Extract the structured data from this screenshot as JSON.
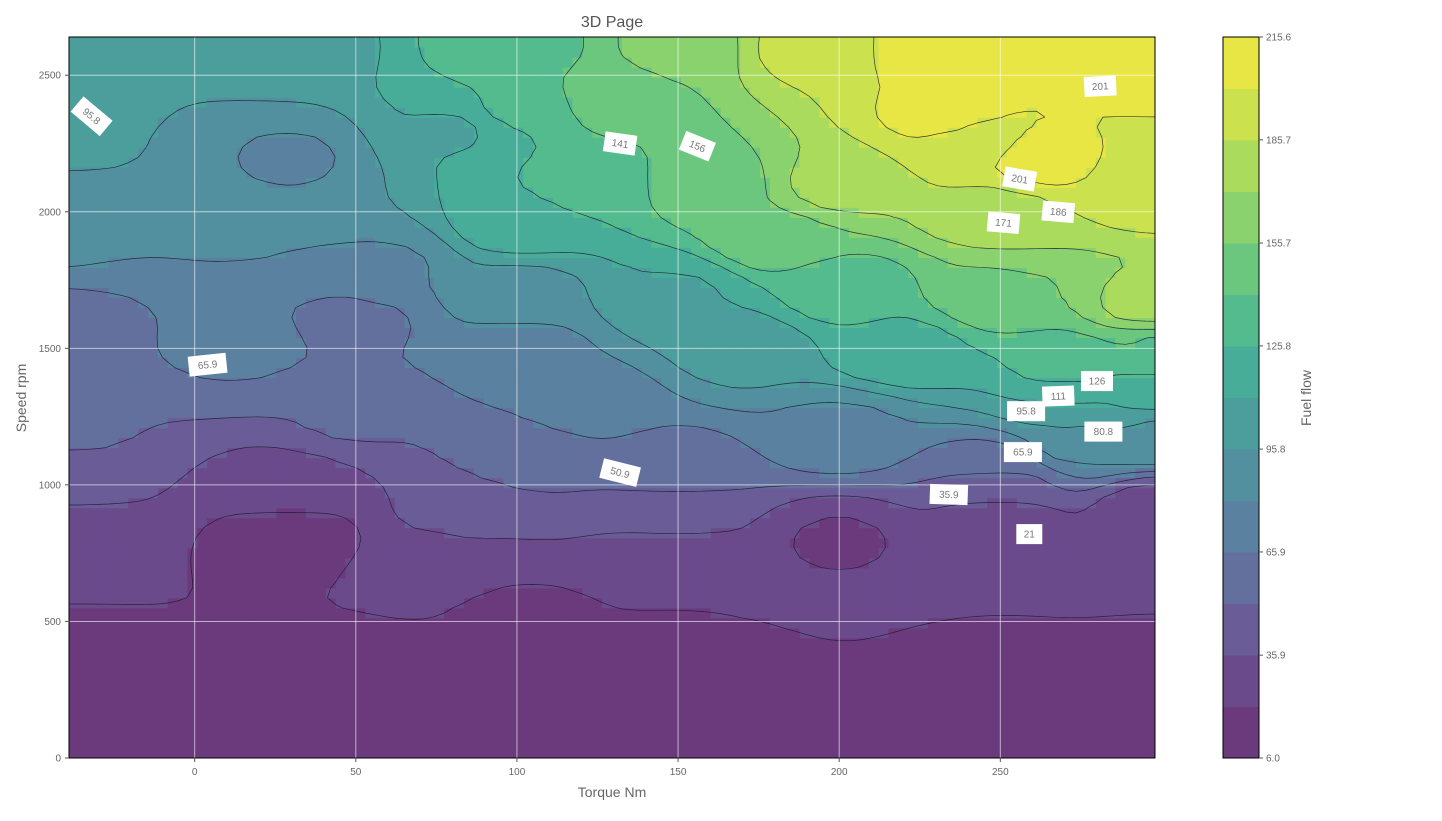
{
  "chart_data": {
    "type": "contour",
    "title": "3D Page",
    "xlabel": "Torque Nm",
    "ylabel": "Speed rpm",
    "xlim": [
      -39,
      298
    ],
    "ylim": [
      0,
      2640
    ],
    "x_ticks": [
      0,
      50,
      100,
      150,
      200,
      250
    ],
    "y_ticks": [
      0,
      500,
      1000,
      1500,
      2000,
      2500
    ],
    "grid": true,
    "colormap": "viridis",
    "colorbar": {
      "label": "Fuel flow",
      "min": 6.0,
      "max": 215.6,
      "levels": [
        6.0,
        21.0,
        35.9,
        50.9,
        65.9,
        80.8,
        95.8,
        110.8,
        125.8,
        140.7,
        155.7,
        170.7,
        185.7,
        200.6,
        215.6
      ],
      "tick_labels": [
        "6.0",
        "35.9",
        "65.9",
        "95.8",
        "125.8",
        "155.7",
        "185.7",
        "215.6"
      ]
    },
    "contour_labels": [
      {
        "text": "95.8",
        "x": -32,
        "y": 2350,
        "rotation": 40
      },
      {
        "text": "141",
        "x": 132,
        "y": 2250,
        "rotation": 8
      },
      {
        "text": "156",
        "x": 156,
        "y": 2240,
        "rotation": 22
      },
      {
        "text": "201",
        "x": 281,
        "y": 2460,
        "rotation": -3
      },
      {
        "text": "201",
        "x": 256,
        "y": 2120,
        "rotation": 10
      },
      {
        "text": "186",
        "x": 268,
        "y": 2000,
        "rotation": 5
      },
      {
        "text": "171",
        "x": 251,
        "y": 1960,
        "rotation": 5
      },
      {
        "text": "65.9",
        "x": 4,
        "y": 1440,
        "rotation": -6
      },
      {
        "text": "126",
        "x": 280,
        "y": 1380,
        "rotation": 0
      },
      {
        "text": "111",
        "x": 268,
        "y": 1325,
        "rotation": -2
      },
      {
        "text": "95.8",
        "x": 258,
        "y": 1270,
        "rotation": 0
      },
      {
        "text": "80.8",
        "x": 282,
        "y": 1195,
        "rotation": 0
      },
      {
        "text": "65.9",
        "x": 257,
        "y": 1120,
        "rotation": 0
      },
      {
        "text": "50.9",
        "x": 132,
        "y": 1045,
        "rotation": 14
      },
      {
        "text": "35.9",
        "x": 234,
        "y": 965,
        "rotation": 2
      },
      {
        "text": "21",
        "x": 259,
        "y": 820,
        "rotation": 0
      }
    ],
    "surface_landmarks": [
      {
        "x": -40,
        "y": 0,
        "value": 8
      },
      {
        "x": 0,
        "y": 0,
        "value": 8
      },
      {
        "x": 50,
        "y": 0,
        "value": 8
      },
      {
        "x": 100,
        "y": 0,
        "value": 8
      },
      {
        "x": 150,
        "y": 0,
        "value": 8
      },
      {
        "x": 200,
        "y": 0,
        "value": 8
      },
      {
        "x": 250,
        "y": 0,
        "value": 8
      },
      {
        "x": 298,
        "y": 0,
        "value": 8
      },
      {
        "x": -40,
        "y": 300,
        "value": 10
      },
      {
        "x": 50,
        "y": 300,
        "value": 10
      },
      {
        "x": 150,
        "y": 300,
        "value": 12
      },
      {
        "x": 250,
        "y": 300,
        "value": 14
      },
      {
        "x": 298,
        "y": 300,
        "value": 14
      },
      {
        "x": 30,
        "y": 800,
        "value": 12
      },
      {
        "x": 70,
        "y": 700,
        "value": 27
      },
      {
        "x": -40,
        "y": 830,
        "value": 28
      },
      {
        "x": 100,
        "y": 500,
        "value": 18
      },
      {
        "x": 150,
        "y": 700,
        "value": 21
      },
      {
        "x": 200,
        "y": 800,
        "value": 20
      },
      {
        "x": 250,
        "y": 850,
        "value": 23
      },
      {
        "x": 298,
        "y": 900,
        "value": 26
      },
      {
        "x": 30,
        "y": 1000,
        "value": 30
      },
      {
        "x": 80,
        "y": 900,
        "value": 38
      },
      {
        "x": -40,
        "y": 1000,
        "value": 40
      },
      {
        "x": 150,
        "y": 900,
        "value": 40
      },
      {
        "x": 250,
        "y": 1000,
        "value": 42
      },
      {
        "x": -40,
        "y": 1200,
        "value": 53
      },
      {
        "x": 50,
        "y": 1250,
        "value": 52
      },
      {
        "x": 100,
        "y": 1100,
        "value": 55
      },
      {
        "x": 150,
        "y": 1050,
        "value": 60
      },
      {
        "x": 250,
        "y": 1080,
        "value": 60
      },
      {
        "x": -40,
        "y": 1600,
        "value": 62
      },
      {
        "x": 15,
        "y": 1520,
        "value": 68
      },
      {
        "x": 50,
        "y": 1600,
        "value": 63
      },
      {
        "x": 120,
        "y": 1300,
        "value": 72
      },
      {
        "x": 200,
        "y": 1200,
        "value": 78
      },
      {
        "x": 270,
        "y": 1160,
        "value": 85
      },
      {
        "x": 270,
        "y": 1250,
        "value": 100
      },
      {
        "x": 270,
        "y": 1320,
        "value": 116
      },
      {
        "x": 270,
        "y": 1420,
        "value": 132
      },
      {
        "x": -40,
        "y": 1900,
        "value": 82
      },
      {
        "x": 10,
        "y": 1960,
        "value": 82
      },
      {
        "x": 60,
        "y": 1800,
        "value": 80
      },
      {
        "x": 100,
        "y": 1700,
        "value": 90
      },
      {
        "x": 150,
        "y": 1700,
        "value": 110
      },
      {
        "x": 200,
        "y": 1700,
        "value": 130
      },
      {
        "x": 250,
        "y": 1700,
        "value": 155
      },
      {
        "x": 298,
        "y": 1650,
        "value": 178
      },
      {
        "x": -40,
        "y": 2200,
        "value": 100
      },
      {
        "x": 30,
        "y": 2200,
        "value": 80
      },
      {
        "x": 80,
        "y": 2300,
        "value": 110
      },
      {
        "x": 120,
        "y": 2100,
        "value": 130
      },
      {
        "x": 160,
        "y": 2100,
        "value": 150
      },
      {
        "x": 200,
        "y": 2100,
        "value": 175
      },
      {
        "x": 250,
        "y": 2000,
        "value": 180
      },
      {
        "x": 298,
        "y": 2100,
        "value": 195
      },
      {
        "x": 232,
        "y": 2350,
        "value": 205
      },
      {
        "x": 262,
        "y": 2180,
        "value": 205
      },
      {
        "x": 300,
        "y": 2600,
        "value": 215
      },
      {
        "x": 230,
        "y": 2600,
        "value": 210
      },
      {
        "x": -40,
        "y": 2600,
        "value": 100
      },
      {
        "x": 30,
        "y": 2600,
        "value": 105
      },
      {
        "x": 100,
        "y": 2600,
        "value": 135
      },
      {
        "x": 150,
        "y": 2600,
        "value": 160
      },
      {
        "x": 190,
        "y": 2600,
        "value": 190
      },
      {
        "x": 100,
        "y": 2380,
        "value": 128
      },
      {
        "x": 130,
        "y": 2420,
        "value": 150
      },
      {
        "x": -40,
        "y": 2400,
        "value": 98
      },
      {
        "x": -40,
        "y": 2100,
        "value": 90
      },
      {
        "x": 100,
        "y": 1950,
        "value": 118
      },
      {
        "x": 180,
        "y": 1900,
        "value": 150
      },
      {
        "x": 240,
        "y": 2250,
        "value": 196
      },
      {
        "x": 100,
        "y": 1500,
        "value": 75
      },
      {
        "x": 170,
        "y": 1500,
        "value": 100
      },
      {
        "x": 220,
        "y": 1500,
        "value": 122
      },
      {
        "x": 298,
        "y": 1500,
        "value": 140
      },
      {
        "x": 298,
        "y": 1350,
        "value": 122
      },
      {
        "x": 298,
        "y": 1200,
        "value": 95
      }
    ]
  }
}
